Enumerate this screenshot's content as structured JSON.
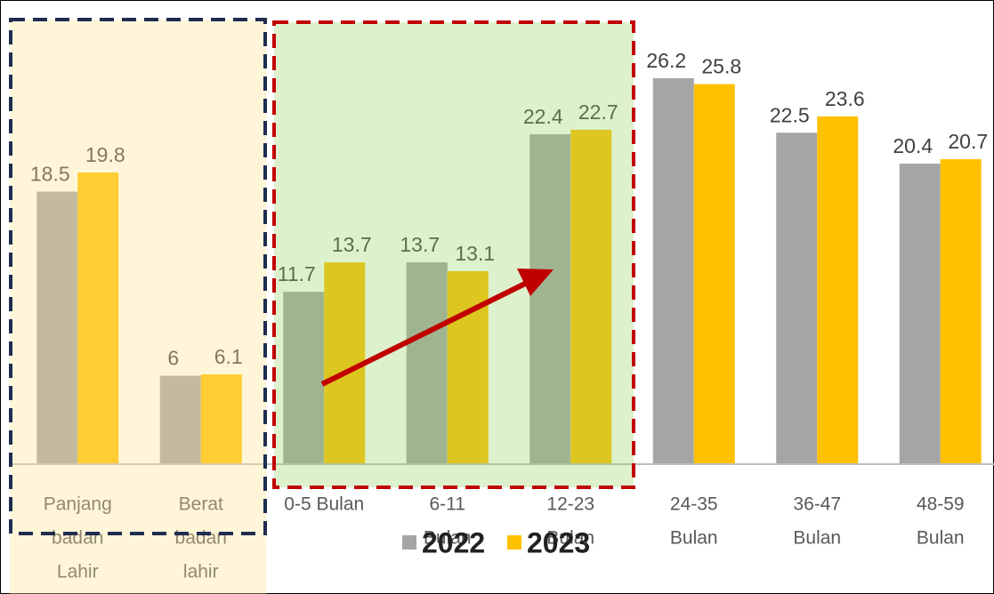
{
  "chart_data": {
    "type": "bar",
    "categories": [
      [
        "Panjang",
        "badan",
        "Lahir"
      ],
      [
        "Berat",
        "badan",
        "lahir"
      ],
      [
        "0-5 Bulan"
      ],
      [
        "6-11",
        "Bulan"
      ],
      [
        "12-23",
        "Bulan"
      ],
      [
        "24-35",
        "Bulan"
      ],
      [
        "36-47",
        "Bulan"
      ],
      [
        "48-59",
        "Bulan"
      ]
    ],
    "series": [
      {
        "name": "2022",
        "color": "#a5a5a5",
        "values": [
          18.5,
          6,
          11.7,
          13.7,
          22.4,
          26.2,
          22.5,
          20.4
        ]
      },
      {
        "name": "2023",
        "color": "#ffc000",
        "values": [
          19.8,
          6.1,
          13.7,
          13.1,
          22.7,
          25.8,
          23.6,
          20.7
        ]
      }
    ],
    "ylim": [
      0,
      30
    ],
    "legend": "bottom"
  }
}
